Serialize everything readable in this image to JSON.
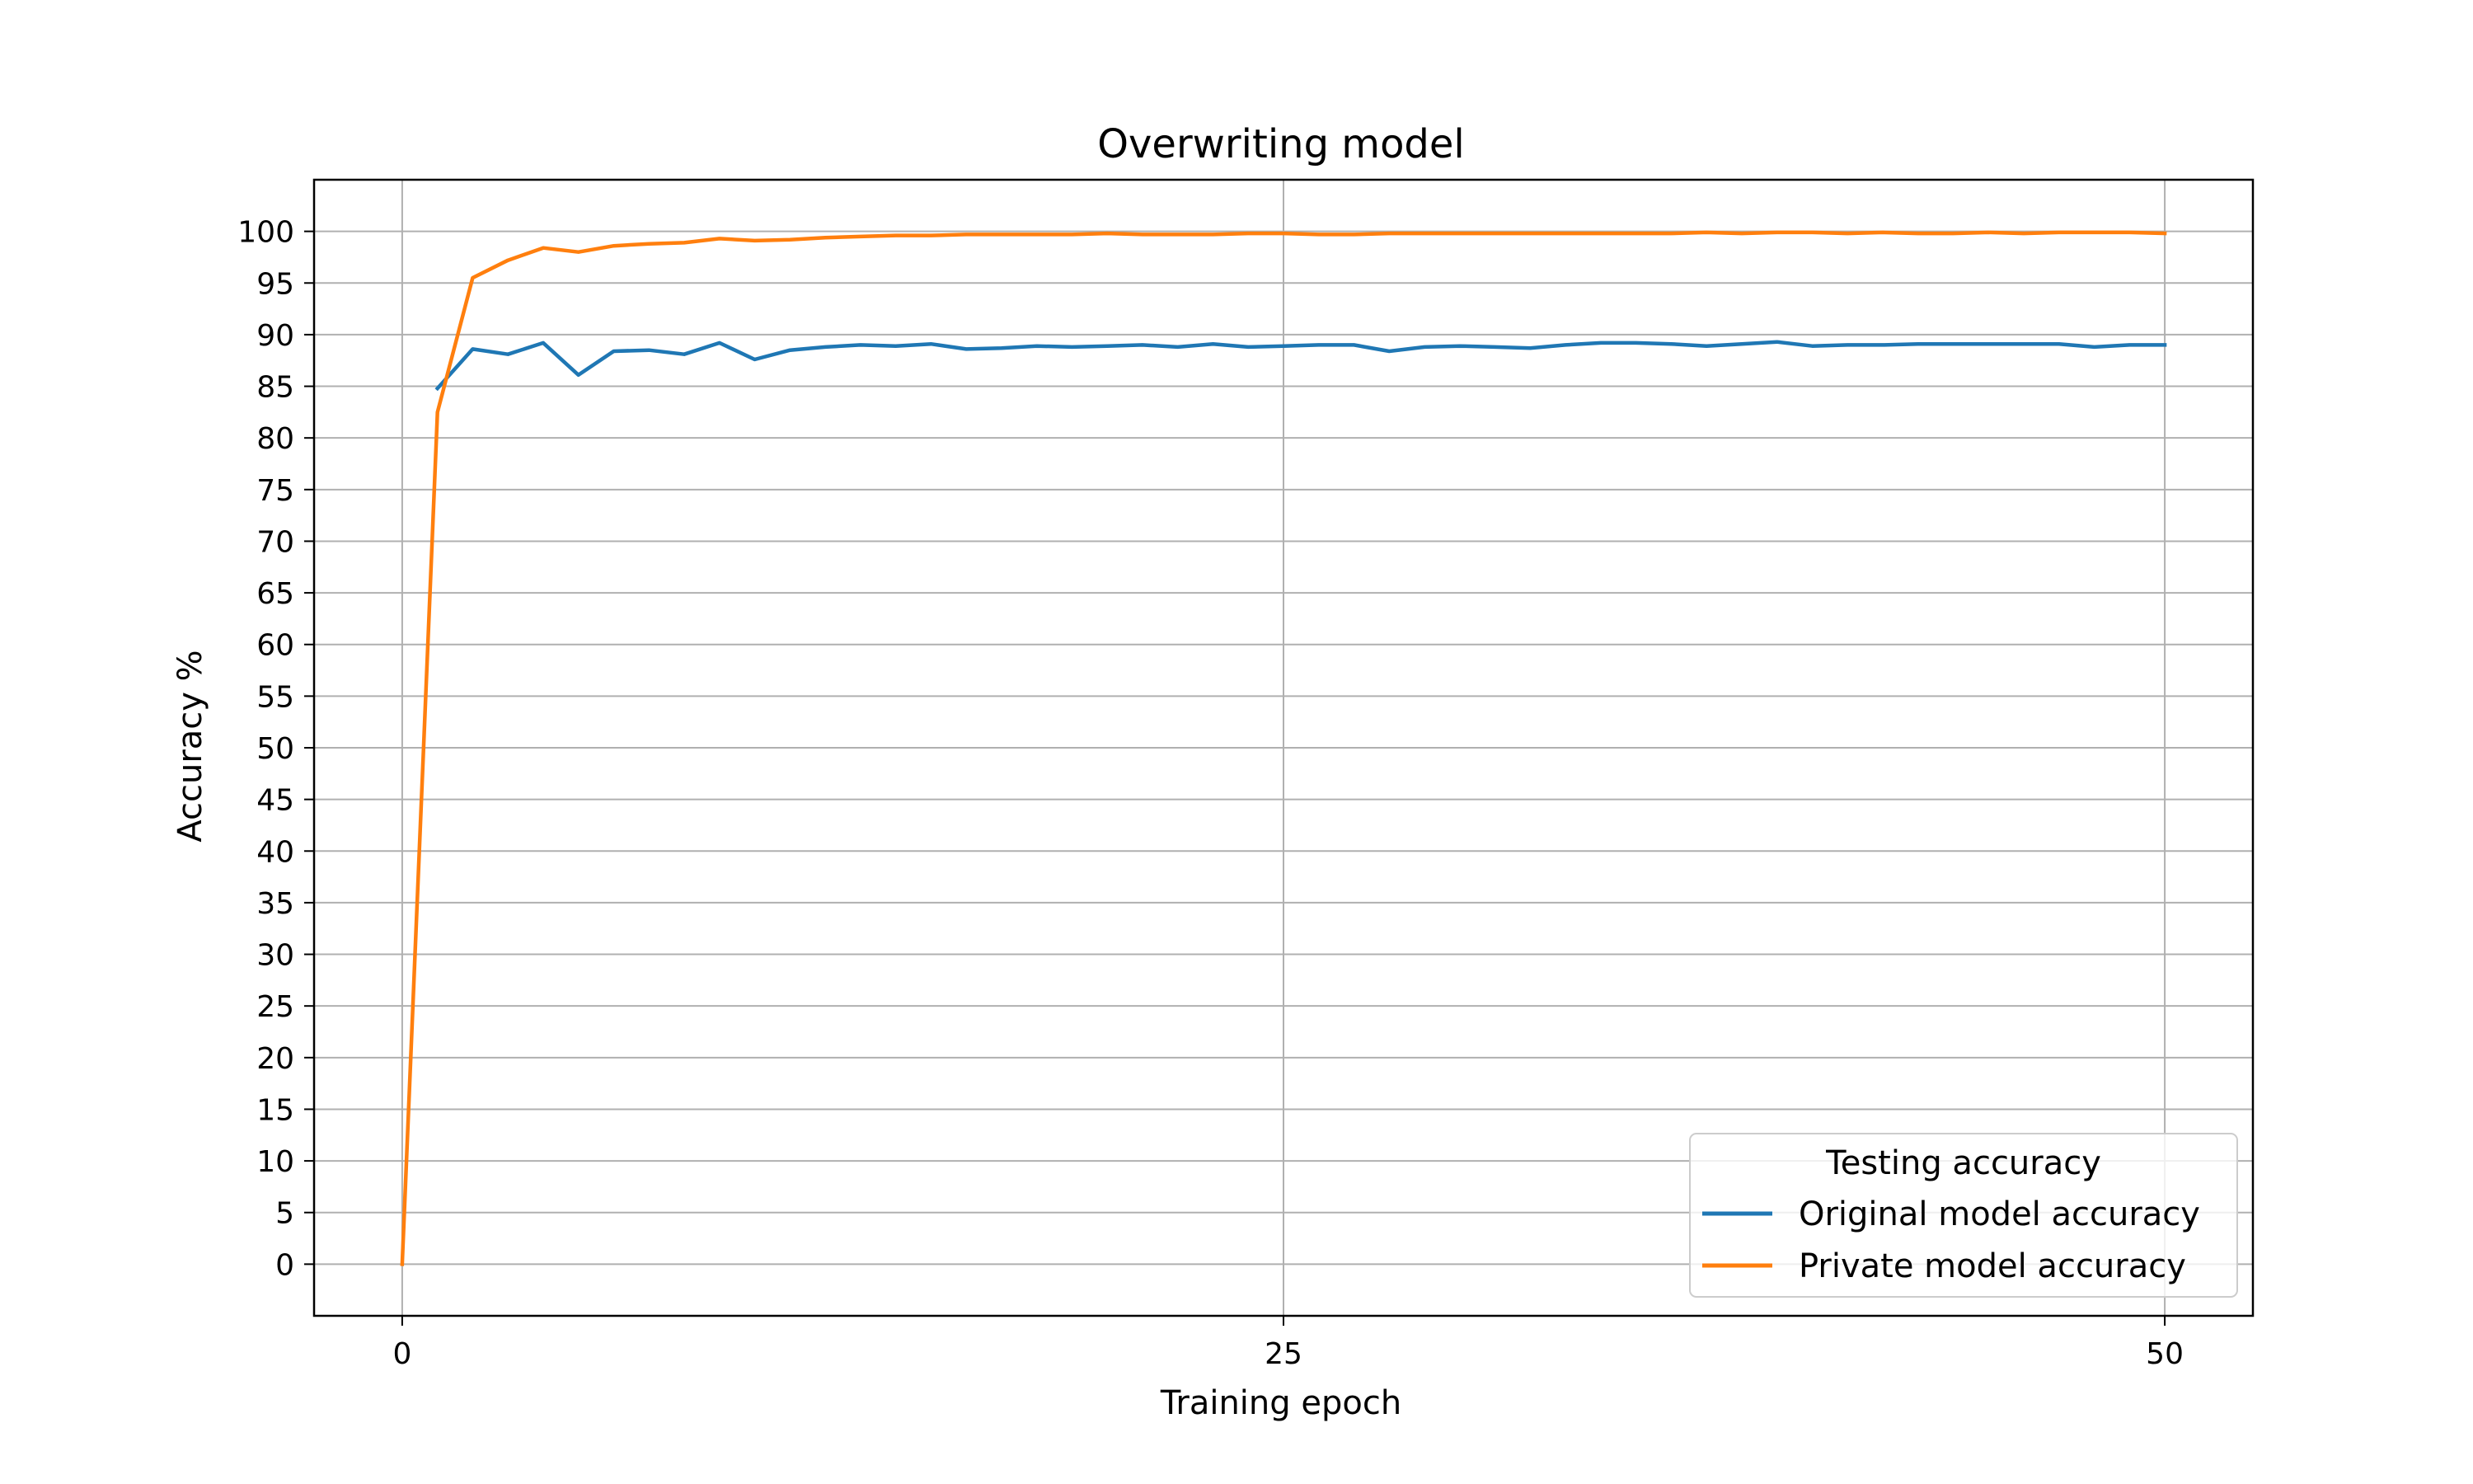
{
  "chart_data": {
    "type": "line",
    "title": "Overwriting model",
    "xlabel": "Training epoch",
    "ylabel": "Accuracy %",
    "xlim": [
      -2.5,
      52.5
    ],
    "ylim": [
      -5,
      105
    ],
    "xticks": [
      0,
      25,
      50
    ],
    "yticks": [
      0,
      5,
      10,
      15,
      20,
      25,
      30,
      35,
      40,
      45,
      50,
      55,
      60,
      65,
      70,
      75,
      80,
      85,
      90,
      95,
      100
    ],
    "grid": true,
    "legend": {
      "title": "Testing accuracy",
      "placement": "bottom-right"
    },
    "series": [
      {
        "name": "Original model accuracy",
        "color": "#1f77b4",
        "x": [
          1,
          2,
          3,
          4,
          5,
          6,
          7,
          8,
          9,
          10,
          11,
          12,
          13,
          14,
          15,
          16,
          17,
          18,
          19,
          20,
          21,
          22,
          23,
          24,
          25,
          26,
          27,
          28,
          29,
          30,
          31,
          32,
          33,
          34,
          35,
          36,
          37,
          38,
          39,
          40,
          41,
          42,
          43,
          44,
          45,
          46,
          47,
          48,
          49,
          50
        ],
        "values": [
          84.8,
          88.6,
          88.1,
          89.2,
          86.1,
          88.4,
          88.5,
          88.1,
          89.2,
          87.6,
          88.5,
          88.8,
          89.0,
          88.9,
          89.1,
          88.6,
          88.7,
          88.9,
          88.8,
          88.9,
          89.0,
          88.8,
          89.1,
          88.8,
          88.9,
          89.0,
          89.0,
          88.4,
          88.8,
          88.9,
          88.8,
          88.7,
          89.0,
          89.2,
          89.2,
          89.1,
          88.9,
          89.1,
          89.3,
          88.9,
          89.0,
          89.0,
          89.1,
          89.1,
          89.1,
          89.1,
          89.1,
          88.8,
          89.0,
          89.0
        ]
      },
      {
        "name": "Private model accuracy",
        "color": "#ff7f0e",
        "x": [
          0,
          1,
          2,
          3,
          4,
          5,
          6,
          7,
          8,
          9,
          10,
          11,
          12,
          13,
          14,
          15,
          16,
          17,
          18,
          19,
          20,
          21,
          22,
          23,
          24,
          25,
          26,
          27,
          28,
          29,
          30,
          31,
          32,
          33,
          34,
          35,
          36,
          37,
          38,
          39,
          40,
          41,
          42,
          43,
          44,
          45,
          46,
          47,
          48,
          49,
          50
        ],
        "values": [
          0,
          82.5,
          95.5,
          97.2,
          98.4,
          98.0,
          98.6,
          98.8,
          98.9,
          99.3,
          99.1,
          99.2,
          99.4,
          99.5,
          99.6,
          99.6,
          99.7,
          99.7,
          99.7,
          99.7,
          99.8,
          99.7,
          99.7,
          99.7,
          99.8,
          99.8,
          99.7,
          99.7,
          99.8,
          99.8,
          99.8,
          99.8,
          99.8,
          99.8,
          99.8,
          99.8,
          99.8,
          99.9,
          99.8,
          99.9,
          99.9,
          99.8,
          99.9,
          99.8,
          99.8,
          99.9,
          99.8,
          99.9,
          99.9,
          99.9,
          99.8
        ]
      }
    ]
  }
}
